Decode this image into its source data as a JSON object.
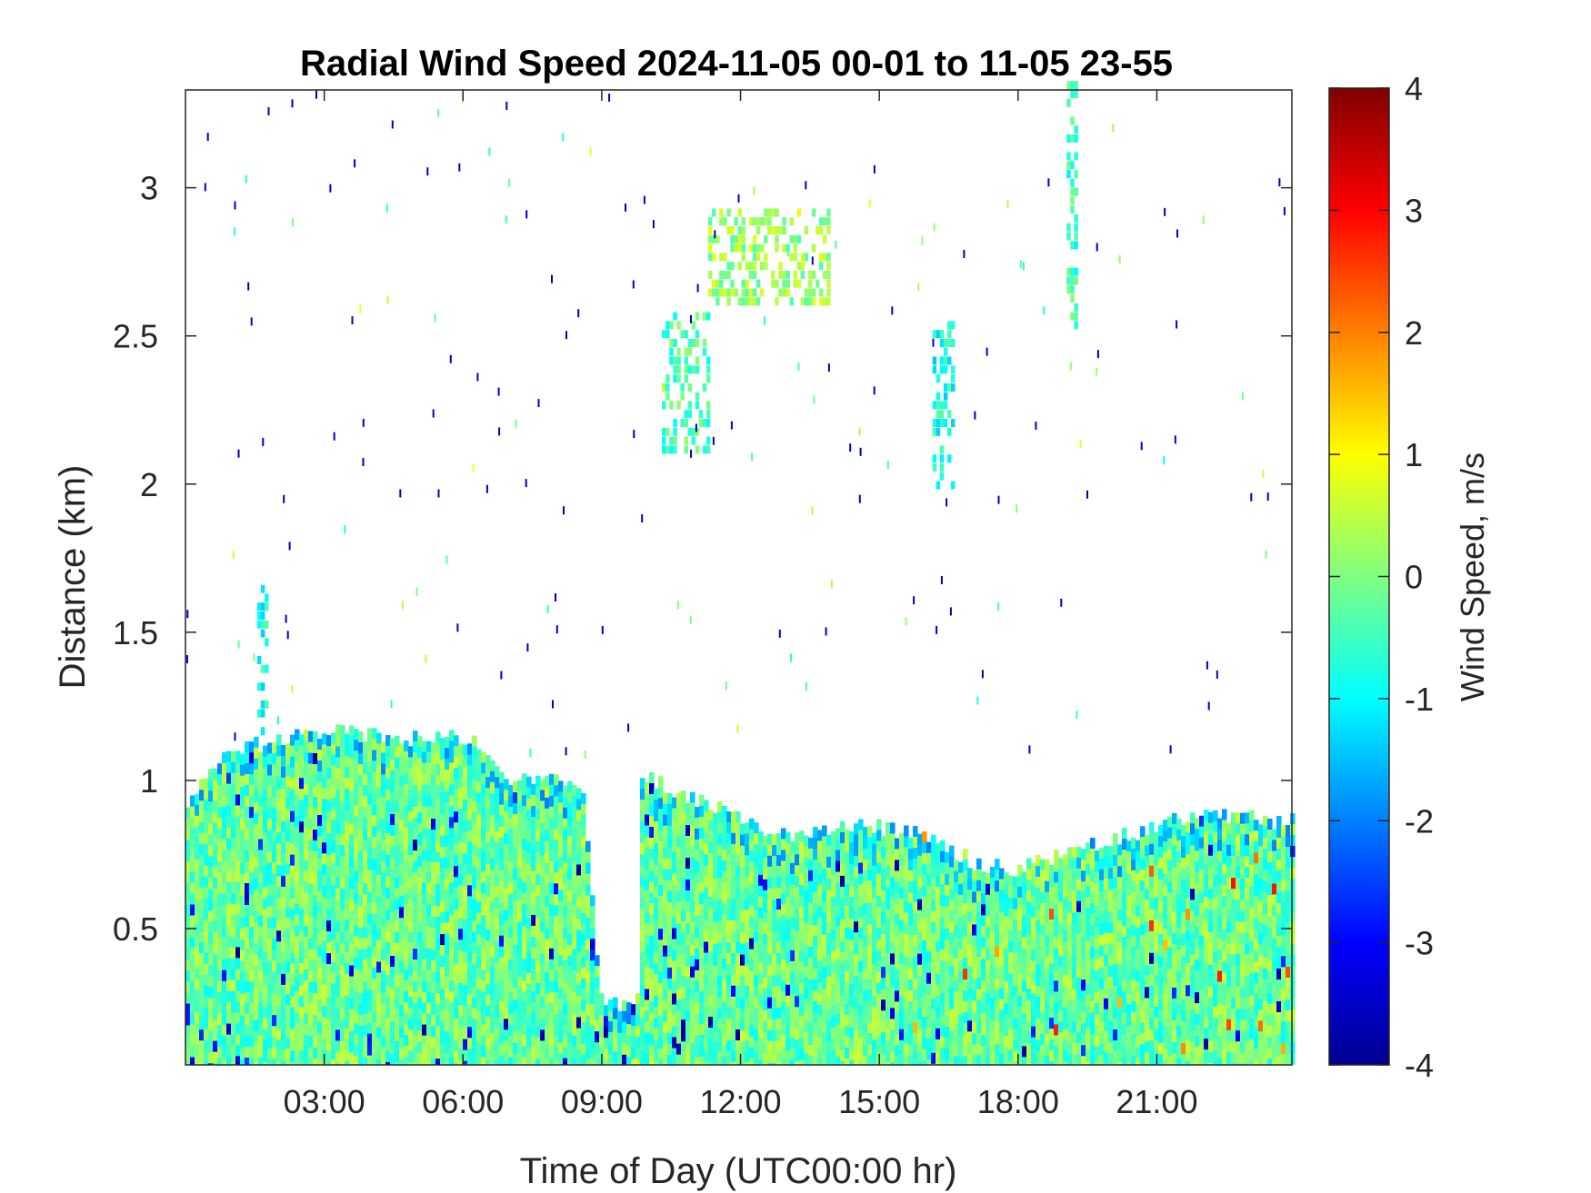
{
  "chart_data": {
    "type": "heatmap",
    "title": "Radial Wind Speed 2024-11-05 00-01 to 11-05 23-55",
    "xlabel": "Time of Day (UTC00:00 hr)",
    "ylabel": "Distance (km)",
    "xlim_hours": [
      0.0,
      23.92
    ],
    "ylim_km": [
      0.04,
      3.33
    ],
    "x_ticks": [
      {
        "hour": 3,
        "label": "03:00"
      },
      {
        "hour": 6,
        "label": "06:00"
      },
      {
        "hour": 9,
        "label": "09:00"
      },
      {
        "hour": 12,
        "label": "12:00"
      },
      {
        "hour": 15,
        "label": "15:00"
      },
      {
        "hour": 18,
        "label": "18:00"
      },
      {
        "hour": 21,
        "label": "21:00"
      }
    ],
    "y_ticks": [
      {
        "value": 0.5,
        "label": "0.5"
      },
      {
        "value": 1,
        "label": "1"
      },
      {
        "value": 1.5,
        "label": "1.5"
      },
      {
        "value": 2,
        "label": "2"
      },
      {
        "value": 2.5,
        "label": "2.5"
      },
      {
        "value": 3,
        "label": "3"
      }
    ],
    "colorbar": {
      "label": "Wind Speed, m/s",
      "colormap": "jet",
      "range": [
        -4,
        4
      ],
      "ticks": [
        {
          "value": 4,
          "label": "4"
        },
        {
          "value": 3,
          "label": "3"
        },
        {
          "value": 2,
          "label": "2"
        },
        {
          "value": 1,
          "label": "1"
        },
        {
          "value": 0,
          "label": "0"
        },
        {
          "value": -1,
          "label": "-1"
        },
        {
          "value": -2,
          "label": "-2"
        },
        {
          "value": -3,
          "label": "-3"
        },
        {
          "value": -4,
          "label": "-4"
        }
      ]
    },
    "boundary_layer_top_km": [
      [
        0.0,
        0.9
      ],
      [
        0.3,
        1.02
      ],
      [
        0.8,
        1.07
      ],
      [
        1.5,
        1.12
      ],
      [
        2.5,
        1.15
      ],
      [
        3.5,
        1.17
      ],
      [
        4.5,
        1.14
      ],
      [
        5.5,
        1.15
      ],
      [
        6.3,
        1.12
      ],
      [
        7.0,
        1.0
      ],
      [
        8.0,
        1.02
      ],
      [
        8.6,
        0.92
      ],
      [
        8.9,
        0.32
      ],
      [
        9.3,
        0.27
      ],
      [
        9.7,
        0.3
      ],
      [
        9.8,
        1.02
      ],
      [
        11.0,
        0.94
      ],
      [
        12.0,
        0.86
      ],
      [
        13.0,
        0.82
      ],
      [
        14.0,
        0.84
      ],
      [
        15.0,
        0.84
      ],
      [
        16.0,
        0.82
      ],
      [
        17.0,
        0.72
      ],
      [
        18.0,
        0.7
      ],
      [
        19.0,
        0.76
      ],
      [
        20.0,
        0.8
      ],
      [
        21.0,
        0.85
      ],
      [
        22.0,
        0.9
      ],
      [
        23.0,
        0.87
      ],
      [
        23.92,
        0.86
      ]
    ],
    "clear_gaps_hours": [
      [
        8.85,
        9.75
      ]
    ],
    "mean_wind_speed_ms_in_layer": -0.2,
    "elevated_returns": [
      {
        "hours": [
          10.3,
          11.3
        ],
        "km": [
          2.1,
          2.55
        ],
        "mean_ms": -0.4
      },
      {
        "hours": [
          11.3,
          13.9
        ],
        "km": [
          2.6,
          2.9
        ],
        "mean_ms": 0.2
      },
      {
        "hours": [
          16.15,
          16.55
        ],
        "km": [
          1.98,
          2.52
        ],
        "mean_ms": -0.9
      },
      {
        "hours": [
          19.05,
          19.25
        ],
        "km": [
          2.4,
          3.33
        ],
        "mean_ms": -0.5
      },
      {
        "hours": [
          1.55,
          1.75
        ],
        "km": [
          1.15,
          1.65
        ],
        "mean_ms": -0.8
      }
    ]
  }
}
